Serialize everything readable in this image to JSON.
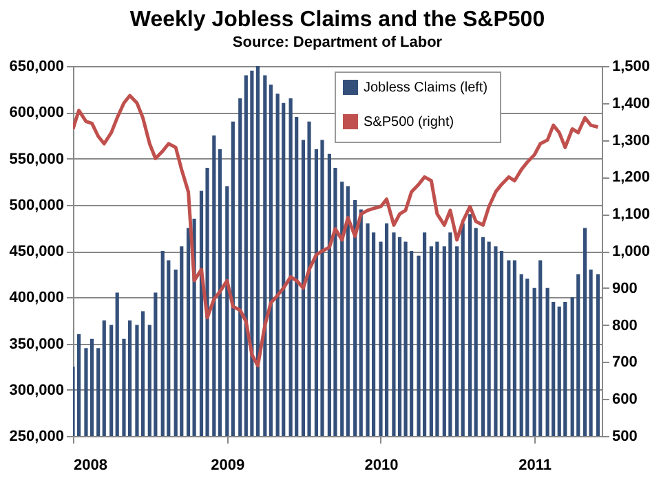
{
  "chart_data": {
    "type": "bar",
    "title": "Weekly Jobless Claims and the S&P500",
    "subtitle": "Source: Department of Labor",
    "x": [
      "2008-01-01",
      "2008-01-15",
      "2008-02-01",
      "2008-02-15",
      "2008-03-01",
      "2008-03-15",
      "2008-04-01",
      "2008-04-15",
      "2008-05-01",
      "2008-05-15",
      "2008-06-01",
      "2008-06-15",
      "2008-07-01",
      "2008-07-15",
      "2008-08-01",
      "2008-08-15",
      "2008-09-01",
      "2008-09-15",
      "2008-10-01",
      "2008-10-15",
      "2008-11-01",
      "2008-11-15",
      "2008-12-01",
      "2008-12-15",
      "2009-01-01",
      "2009-01-15",
      "2009-02-01",
      "2009-02-15",
      "2009-03-01",
      "2009-03-15",
      "2009-04-01",
      "2009-04-15",
      "2009-05-01",
      "2009-05-15",
      "2009-06-01",
      "2009-06-15",
      "2009-07-01",
      "2009-07-15",
      "2009-08-01",
      "2009-08-15",
      "2009-09-01",
      "2009-09-15",
      "2009-10-01",
      "2009-10-15",
      "2009-11-01",
      "2009-11-15",
      "2009-12-01",
      "2009-12-15",
      "2010-01-01",
      "2010-01-15",
      "2010-02-01",
      "2010-02-15",
      "2010-03-01",
      "2010-03-15",
      "2010-04-01",
      "2010-04-15",
      "2010-05-01",
      "2010-05-15",
      "2010-06-01",
      "2010-06-15",
      "2010-07-01",
      "2010-07-15",
      "2010-08-01",
      "2010-08-15",
      "2010-09-01",
      "2010-09-15",
      "2010-10-01",
      "2010-10-15",
      "2010-11-01",
      "2010-11-15",
      "2010-12-01",
      "2010-12-15",
      "2011-01-01",
      "2011-01-15",
      "2011-02-01",
      "2011-02-15",
      "2011-03-01",
      "2011-03-15",
      "2011-04-01",
      "2011-04-15",
      "2011-05-01",
      "2011-05-15",
      "2011-06-01"
    ],
    "series": [
      {
        "name": "Jobless Claims  (left)",
        "color": "#34507a",
        "values": [
          325000,
          360000,
          345000,
          355000,
          345000,
          375000,
          370000,
          405000,
          355000,
          375000,
          370000,
          385000,
          370000,
          405000,
          450000,
          440000,
          430000,
          455000,
          475000,
          485000,
          515000,
          540000,
          575000,
          560000,
          520000,
          590000,
          615000,
          640000,
          645000,
          650000,
          640000,
          630000,
          620000,
          610000,
          615000,
          595000,
          570000,
          590000,
          560000,
          570000,
          555000,
          540000,
          525000,
          520000,
          505000,
          495000,
          480000,
          470000,
          460000,
          480000,
          470000,
          465000,
          460000,
          450000,
          445000,
          470000,
          455000,
          460000,
          455000,
          470000,
          455000,
          480000,
          490000,
          475000,
          465000,
          460000,
          455000,
          450000,
          440000,
          440000,
          425000,
          420000,
          410000,
          440000,
          410000,
          395000,
          390000,
          395000,
          400000,
          425000,
          475000,
          430000,
          425000
        ]
      },
      {
        "name": "S&P500 (right)",
        "type": "line",
        "axis": "y2",
        "color": "#c0504d",
        "values": [
          1330,
          1380,
          1350,
          1345,
          1310,
          1290,
          1320,
          1360,
          1400,
          1420,
          1400,
          1360,
          1290,
          1250,
          1270,
          1290,
          1280,
          1220,
          1160,
          920,
          950,
          820,
          870,
          890,
          920,
          850,
          840,
          810,
          720,
          690,
          800,
          860,
          880,
          900,
          930,
          920,
          900,
          950,
          990,
          1000,
          1010,
          1060,
          1030,
          1090,
          1040,
          1100,
          1110,
          1115,
          1120,
          1140,
          1070,
          1100,
          1110,
          1160,
          1180,
          1200,
          1190,
          1100,
          1070,
          1110,
          1030,
          1080,
          1120,
          1080,
          1070,
          1120,
          1160,
          1180,
          1200,
          1190,
          1220,
          1240,
          1260,
          1290,
          1300,
          1340,
          1320,
          1280,
          1330,
          1320,
          1360,
          1340,
          1335
        ]
      }
    ],
    "xlim": [
      "2008-01-01",
      "2011-06-10"
    ],
    "xticks": [
      {
        "value": "2008-01-01",
        "label": "2008"
      },
      {
        "value": "2009-01-01",
        "label": "2009"
      },
      {
        "value": "2010-01-01",
        "label": "2010"
      },
      {
        "value": "2011-01-01",
        "label": "2011"
      }
    ],
    "ylim": [
      250000,
      650000
    ],
    "yticks": [
      {
        "value": 250000,
        "label": "250,000"
      },
      {
        "value": 300000,
        "label": "300,000"
      },
      {
        "value": 350000,
        "label": "350,000"
      },
      {
        "value": 400000,
        "label": "400,000"
      },
      {
        "value": 450000,
        "label": "450,000"
      },
      {
        "value": 500000,
        "label": "500,000"
      },
      {
        "value": 550000,
        "label": "550,000"
      },
      {
        "value": 600000,
        "label": "600,000"
      },
      {
        "value": 650000,
        "label": "650,000"
      }
    ],
    "y2lim": [
      500,
      1500
    ],
    "y2ticks": [
      500,
      600,
      700,
      800,
      900,
      {
        "value": 1000,
        "label": "1,000"
      },
      {
        "value": 1100,
        "label": "1,100"
      },
      {
        "value": 1200,
        "label": "1,200"
      },
      {
        "value": 1300,
        "label": "1,300"
      },
      {
        "value": 1400,
        "label": "1,400"
      },
      {
        "value": 1500,
        "label": "1,500"
      }
    ],
    "grid": "y",
    "legend": "top right"
  }
}
